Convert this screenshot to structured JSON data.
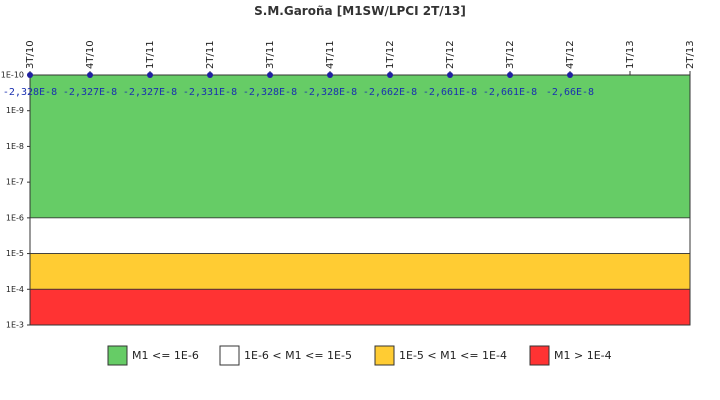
{
  "chart_data": {
    "type": "line",
    "title": "S.M.Garoña [M1SW/LPCI 2T/13]",
    "x_categories": [
      "3T/10",
      "4T/10",
      "1T/11",
      "2T/11",
      "3T/11",
      "4T/11",
      "1T/12",
      "2T/12",
      "3T/12",
      "4T/12",
      "1T/13",
      "2T/13"
    ],
    "y_scale": "log",
    "y_ticks": [
      "1E-10",
      "1E-9",
      "1E-8",
      "1E-7",
      "1E-6",
      "1E-5",
      "1E-4",
      "1E-3"
    ],
    "ylim": [
      "1E-10",
      "1E-3"
    ],
    "y_axis_inverted": true,
    "series": [
      {
        "color": "#2020a0",
        "x": [
          "3T/10",
          "4T/10",
          "1T/11",
          "2T/11",
          "3T/11",
          "4T/11",
          "1T/12",
          "2T/12",
          "3T/12",
          "4T/12"
        ],
        "values": [
          -2.328e-08,
          -2.327e-08,
          -2.327e-08,
          -2.331e-08,
          -2.328e-08,
          -2.328e-08,
          -2.662e-08,
          -2.661e-08,
          -2.661e-08,
          -2.66e-08
        ],
        "data_labels": [
          "-2,328E-8",
          "-2,327E-8",
          "-2,327E-8",
          "-2,331E-8",
          "-2,328E-8",
          "-2,328E-8",
          "-2,662E-8",
          "-2,661E-8",
          "-2,661E-8",
          "-2,66E-8"
        ]
      }
    ],
    "bands": [
      {
        "from": "1E-10",
        "to": "1E-6",
        "color": "#66cc66",
        "label": "M1 <= 1E-6"
      },
      {
        "from": "1E-6",
        "to": "1E-5",
        "color": "#ffffff",
        "label": "1E-6 < M1 <= 1E-5"
      },
      {
        "from": "1E-5",
        "to": "1E-4",
        "color": "#ffcc33",
        "label": "1E-5 < M1 <= 1E-4"
      },
      {
        "from": "1E-4",
        "to": "1E-3",
        "color": "#ff3333",
        "label": "M1 > 1E-4"
      }
    ],
    "legend_position": "bottom",
    "grid": false
  }
}
